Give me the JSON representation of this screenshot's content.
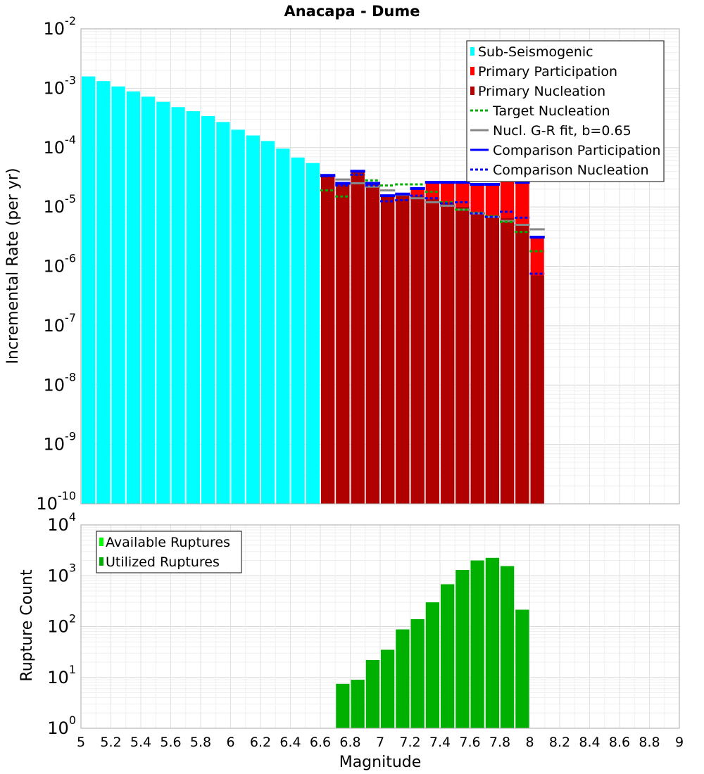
{
  "chart_data": [
    {
      "type": "bar",
      "title": "Anacapa - Dume",
      "xlabel": "Magnitude",
      "ylabel": "Incremental Rate (per yr)",
      "yscale": "log",
      "ylim_exp": [
        -10,
        -2
      ],
      "xlim": [
        5,
        9
      ],
      "ytick_base": "10",
      "ytick_exponents": [
        "-10",
        "-9",
        "-8",
        "-7",
        "-6",
        "-5",
        "-4",
        "-3",
        "-2"
      ],
      "grid": true,
      "legend_position": "top-right",
      "legend": [
        {
          "label": "Sub-Seismogenic",
          "style": "bar",
          "color": "#00ffff"
        },
        {
          "label": "Primary Participation",
          "style": "bar",
          "color": "#ff0000"
        },
        {
          "label": "Primary Nucleation",
          "style": "bar",
          "color": "#b00000"
        },
        {
          "label": "Target Nucleation",
          "style": "dotted",
          "color": "#00b000"
        },
        {
          "label": "Nucl. G-R fit, b=0.65",
          "style": "solid",
          "color": "#888888"
        },
        {
          "label": "Comparison Participation",
          "style": "solid",
          "color": "#0000ff"
        },
        {
          "label": "Comparison Nucleation",
          "style": "dotted",
          "color": "#0000ff"
        }
      ],
      "sub_seismogenic": {
        "color": "#00ffff",
        "x": [
          5.05,
          5.15,
          5.25,
          5.35,
          5.45,
          5.55,
          5.65,
          5.75,
          5.85,
          5.95,
          6.05,
          6.15,
          6.25,
          6.35,
          6.45,
          6.55
        ],
        "values": [
          0.00158,
          0.00132,
          0.00107,
          0.00088,
          0.00072,
          0.00059,
          0.00048,
          0.00041,
          0.00034,
          0.00027,
          0.0002,
          0.00016,
          0.000129,
          9.6e-05,
          6.8e-05,
          5.5e-05
        ]
      },
      "primary_participation": {
        "color": "#ff0000",
        "x": [
          6.65,
          6.75,
          6.85,
          6.95,
          7.05,
          7.15,
          7.25,
          7.35,
          7.45,
          7.55,
          7.65,
          7.75,
          7.85,
          7.95,
          8.05
        ],
        "values": [
          3.3e-05,
          2.4e-05,
          3.8e-05,
          2.4e-05,
          1.5e-05,
          1.6e-05,
          2e-05,
          2.6e-05,
          2.6e-05,
          2.6e-05,
          2.4e-05,
          2.4e-05,
          3.1e-05,
          2.6e-05,
          3e-06
        ]
      },
      "primary_nucleation": {
        "color": "#b00000",
        "x": [
          6.65,
          6.75,
          6.85,
          6.95,
          7.05,
          7.15,
          7.25,
          7.35,
          7.45,
          7.55,
          7.65,
          7.75,
          7.85,
          7.95,
          8.05
        ],
        "values": [
          3.3e-05,
          2.4e-05,
          3.8e-05,
          2.4e-05,
          1.5e-05,
          1.6e-05,
          1.5e-05,
          1.35e-05,
          1.15e-05,
          1e-05,
          8e-06,
          7e-06,
          6.5e-06,
          5e-06,
          7e-07
        ]
      },
      "target_nucleation": {
        "color": "#00b000",
        "x": [
          6.65,
          6.75,
          6.85,
          6.95,
          7.05,
          7.15,
          7.25,
          7.35,
          7.45,
          7.55,
          7.65,
          7.75,
          7.85,
          7.95,
          8.05
        ],
        "values": [
          1.9e-05,
          1.5e-05,
          3.5e-05,
          2.8e-05,
          2.3e-05,
          2.4e-05,
          2.4e-05,
          1.8e-05,
          1.2e-05,
          9e-06,
          8e-06,
          7e-06,
          5.6e-06,
          3.8e-06,
          1.8e-06
        ]
      },
      "gr_fit": {
        "color": "#888888",
        "x": [
          6.75,
          6.85,
          6.95,
          7.05,
          7.15,
          7.25,
          7.35,
          7.45,
          7.55,
          7.65,
          7.75,
          7.85,
          7.95,
          8.05
        ],
        "values": [
          2.9e-05,
          2.5e-05,
          2.2e-05,
          1.9e-05,
          1.6e-05,
          1.4e-05,
          1.2e-05,
          1.05e-05,
          9e-06,
          7.8e-06,
          6.8e-06,
          5.8e-06,
          5e-06,
          4.2e-06
        ]
      },
      "comparison_participation": {
        "color": "#0000ff",
        "x": [
          6.65,
          6.75,
          6.85,
          6.95,
          7.05,
          7.15,
          7.25,
          7.35,
          7.45,
          7.55,
          7.65,
          7.75,
          7.85,
          7.95,
          8.05
        ],
        "values": [
          3.4e-05,
          2.5e-05,
          4e-05,
          2.5e-05,
          1.55e-05,
          1.65e-05,
          2.05e-05,
          2.6e-05,
          2.6e-05,
          2.6e-05,
          2.4e-05,
          2.4e-05,
          3.1e-05,
          2.6e-05,
          3.1e-06
        ]
      },
      "comparison_nucleation": {
        "color": "#0000ff",
        "x": [
          6.65,
          6.75,
          6.85,
          6.95,
          7.05,
          7.15,
          7.25,
          7.35,
          7.45,
          7.55,
          7.65,
          7.75,
          7.85,
          7.95,
          8.05
        ],
        "values": [
          3.3e-05,
          2.3e-05,
          3.5e-05,
          2.3e-05,
          1.25e-05,
          1.3e-05,
          1.55e-05,
          1.4e-05,
          1.15e-05,
          1.2e-05,
          7.8e-06,
          6.8e-06,
          8.3e-06,
          6.6e-06,
          7.5e-07
        ]
      }
    },
    {
      "type": "bar",
      "xlabel": "Magnitude",
      "ylabel": "Rupture Count",
      "yscale": "log",
      "ylim_exp": [
        0,
        4
      ],
      "xlim": [
        5,
        9
      ],
      "ytick_base": "10",
      "ytick_exponents": [
        "0",
        "1",
        "2",
        "3",
        "4"
      ],
      "xticks": [
        "5",
        "5.2",
        "5.4",
        "5.6",
        "5.8",
        "6",
        "6.2",
        "6.4",
        "6.6",
        "6.8",
        "7",
        "7.2",
        "7.4",
        "7.6",
        "7.8",
        "8",
        "8.2",
        "8.4",
        "8.6",
        "8.8",
        "9"
      ],
      "grid": true,
      "legend_position": "top-left",
      "legend": [
        {
          "label": "Available Ruptures",
          "style": "bar",
          "color": "#00ff00"
        },
        {
          "label": "Utilized Ruptures",
          "style": "bar",
          "color": "#00b000"
        }
      ],
      "utilized": {
        "color": "#00b000",
        "x": [
          6.75,
          6.85,
          6.95,
          7.05,
          7.15,
          7.25,
          7.35,
          7.45,
          7.55,
          7.65,
          7.75,
          7.85,
          7.95
        ],
        "values": [
          7.5,
          9,
          22,
          35,
          88,
          140,
          300,
          680,
          1300,
          2000,
          2250,
          1550,
          215
        ]
      }
    }
  ]
}
